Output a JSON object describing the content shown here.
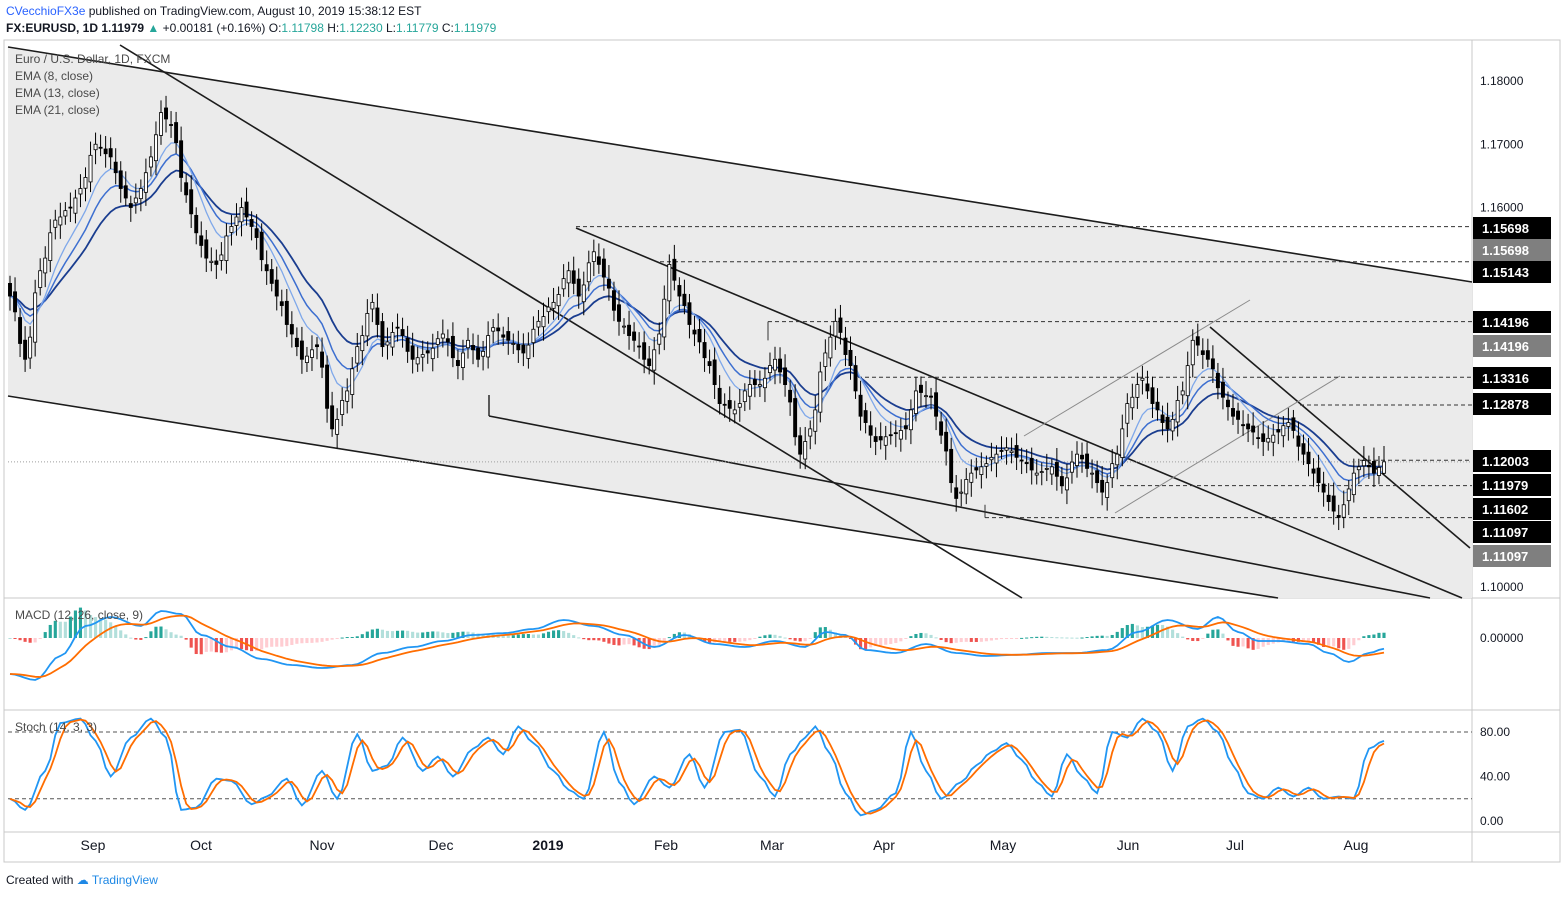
{
  "header": {
    "user": "CVecchioFX3e",
    "published": "published on TradingView.com, August 10, 2019 15:38:12 EST",
    "symbol": "FX:EURUSD, 1D",
    "last": "1.11979",
    "arrow": "▲",
    "change": "+0.00181 (+0.16%)",
    "ohlc": [
      {
        "label": "O:",
        "value": "1.11798"
      },
      {
        "label": "H:",
        "value": "1.12230"
      },
      {
        "label": "L:",
        "value": "1.11779"
      },
      {
        "label": "C:",
        "value": "1.11979"
      }
    ]
  },
  "legend": {
    "title": "Euro / U.S. Dollar, 1D, FXCM",
    "ema8": "EMA (8, close)",
    "ema13": "EMA (13, close)",
    "ema21": "EMA (21, close)",
    "macd": "MACD (12, 26, close, 9)",
    "stoch": "Stoch (14, 3, 3)"
  },
  "footer": {
    "created": "Created with",
    "brand": "TradingView"
  },
  "colors": {
    "bull": "#ffffff",
    "bear": "#000000",
    "channel": "#ebebeb",
    "ema8": "#7fa8ea",
    "ema13": "#3d6fd0",
    "ema21": "#1a3d8f",
    "macd": "#2196f3",
    "signal": "#ff6d00",
    "hist_pos": "#26a69a",
    "hist_pos_light": "#b2dfdb",
    "hist_neg": "#ef5350",
    "hist_neg_light": "#ffcdd2"
  },
  "chart_data": {
    "type": "candlestick",
    "instrument": "EUR/USD",
    "timeframe": "1D",
    "x_labels": [
      "Sep",
      "Oct",
      "Nov",
      "Dec",
      "2019",
      "Feb",
      "Mar",
      "Apr",
      "May",
      "Jun",
      "Jul",
      "Aug"
    ],
    "y_ticks": [
      "1.18000",
      "1.17000",
      "1.16000",
      "1.10000"
    ],
    "ylim": [
      1.0975,
      1.1855
    ],
    "price_labels": [
      {
        "value": "1.15698",
        "price": 1.15698,
        "style": "black"
      },
      {
        "value": "1.15698",
        "price": 1.15698,
        "style": "gray"
      },
      {
        "value": "1.15143",
        "price": 1.15143,
        "style": "black"
      },
      {
        "value": "1.14196",
        "price": 1.14196,
        "style": "black"
      },
      {
        "value": "1.14196",
        "price": 1.14196,
        "style": "gray"
      },
      {
        "value": "1.13316",
        "price": 1.13316,
        "style": "black"
      },
      {
        "value": "1.12878",
        "price": 1.12878,
        "style": "black"
      },
      {
        "value": "1.12003",
        "price": 1.12003,
        "style": "black"
      },
      {
        "value": "1.11979",
        "price": 1.11979,
        "style": "black"
      },
      {
        "value": "1.11602",
        "price": 1.11602,
        "style": "black"
      },
      {
        "value": "1.11097",
        "price": 1.11097,
        "style": "black"
      },
      {
        "value": "1.11097",
        "price": 1.11097,
        "style": "gray"
      }
    ],
    "close_anchors": [
      [
        0,
        1.146
      ],
      [
        3,
        1.136
      ],
      [
        6,
        1.15
      ],
      [
        9,
        1.158
      ],
      [
        12,
        1.16
      ],
      [
        14,
        1.163
      ],
      [
        17,
        1.17
      ],
      [
        20,
        1.168
      ],
      [
        22,
        1.163
      ],
      [
        24,
        1.16
      ],
      [
        26,
        1.163
      ],
      [
        28,
        1.168
      ],
      [
        30,
        1.175
      ],
      [
        32,
        1.173
      ],
      [
        35,
        1.162
      ],
      [
        37,
        1.156
      ],
      [
        39,
        1.152
      ],
      [
        41,
        1.151
      ],
      [
        44,
        1.157
      ],
      [
        46,
        1.16
      ],
      [
        48,
        1.157
      ],
      [
        51,
        1.15
      ],
      [
        53,
        1.146
      ],
      [
        56,
        1.14
      ],
      [
        58,
        1.136
      ],
      [
        61,
        1.138
      ],
      [
        64,
        1.125
      ],
      [
        67,
        1.131
      ],
      [
        69,
        1.138
      ],
      [
        72,
        1.145
      ],
      [
        74,
        1.138
      ],
      [
        77,
        1.141
      ],
      [
        80,
        1.136
      ],
      [
        83,
        1.137
      ],
      [
        86,
        1.14
      ],
      [
        89,
        1.135
      ],
      [
        91,
        1.139
      ],
      [
        93,
        1.136
      ],
      [
        96,
        1.141
      ],
      [
        99,
        1.139
      ],
      [
        102,
        1.137
      ],
      [
        105,
        1.142
      ],
      [
        108,
        1.145
      ],
      [
        111,
        1.15
      ],
      [
        113,
        1.146
      ],
      [
        116,
        1.153
      ],
      [
        118,
        1.149
      ],
      [
        121,
        1.142
      ],
      [
        124,
        1.139
      ],
      [
        127,
        1.135
      ],
      [
        129,
        1.14
      ],
      [
        131,
        1.151
      ],
      [
        133,
        1.146
      ],
      [
        136,
        1.14
      ],
      [
        139,
        1.135
      ],
      [
        141,
        1.129
      ],
      [
        144,
        1.128
      ],
      [
        147,
        1.132
      ],
      [
        149,
        1.132
      ],
      [
        152,
        1.136
      ],
      [
        154,
        1.132
      ],
      [
        157,
        1.121
      ],
      [
        159,
        1.125
      ],
      [
        162,
        1.137
      ],
      [
        164,
        1.142
      ],
      [
        167,
        1.135
      ],
      [
        169,
        1.127
      ],
      [
        172,
        1.123
      ],
      [
        175,
        1.124
      ],
      [
        178,
        1.125
      ],
      [
        180,
        1.131
      ],
      [
        183,
        1.13
      ],
      [
        185,
        1.124
      ],
      [
        188,
        1.114
      ],
      [
        191,
        1.118
      ],
      [
        193,
        1.119
      ],
      [
        196,
        1.121
      ],
      [
        198,
        1.122
      ],
      [
        201,
        1.12
      ],
      [
        204,
        1.118
      ],
      [
        207,
        1.119
      ],
      [
        209,
        1.116
      ],
      [
        212,
        1.121
      ],
      [
        215,
        1.118
      ],
      [
        217,
        1.115
      ],
      [
        220,
        1.121
      ],
      [
        222,
        1.129
      ],
      [
        225,
        1.133
      ],
      [
        227,
        1.129
      ],
      [
        230,
        1.125
      ],
      [
        233,
        1.131
      ],
      [
        235,
        1.139
      ],
      [
        238,
        1.136
      ],
      [
        241,
        1.13
      ],
      [
        243,
        1.127
      ],
      [
        246,
        1.125
      ],
      [
        249,
        1.123
      ],
      [
        251,
        1.124
      ],
      [
        254,
        1.126
      ],
      [
        257,
        1.121
      ],
      [
        259,
        1.118
      ],
      [
        261,
        1.115
      ],
      [
        263,
        1.112
      ],
      [
        264,
        1.111
      ],
      [
        265,
        1.113
      ],
      [
        267,
        1.118
      ],
      [
        269,
        1.12
      ],
      [
        271,
        1.118
      ],
      [
        273,
        1.1198
      ]
    ],
    "macd_anchors": [
      [
        0,
        -0.006
      ],
      [
        5,
        -0.007
      ],
      [
        10,
        -0.003
      ],
      [
        15,
        0.002
      ],
      [
        20,
        0.0035
      ],
      [
        26,
        0.002
      ],
      [
        30,
        0.0045
      ],
      [
        34,
        0.004
      ],
      [
        38,
        0.0005
      ],
      [
        44,
        -0.0015
      ],
      [
        50,
        -0.0035
      ],
      [
        56,
        -0.0045
      ],
      [
        62,
        -0.005
      ],
      [
        68,
        -0.0045
      ],
      [
        74,
        -0.0025
      ],
      [
        80,
        -0.0015
      ],
      [
        86,
        -0.0005
      ],
      [
        92,
        0.0005
      ],
      [
        98,
        0.0008
      ],
      [
        104,
        0.0015
      ],
      [
        110,
        0.003
      ],
      [
        116,
        0.002
      ],
      [
        122,
        0.0005
      ],
      [
        128,
        -0.0015
      ],
      [
        134,
        0.0005
      ],
      [
        140,
        -0.001
      ],
      [
        146,
        -0.0015
      ],
      [
        152,
        -0.0005
      ],
      [
        158,
        -0.0015
      ],
      [
        162,
        0.001
      ],
      [
        166,
        0.0005
      ],
      [
        170,
        -0.002
      ],
      [
        176,
        -0.0025
      ],
      [
        182,
        -0.001
      ],
      [
        188,
        -0.0025
      ],
      [
        194,
        -0.003
      ],
      [
        200,
        -0.0028
      ],
      [
        206,
        -0.0025
      ],
      [
        212,
        -0.0025
      ],
      [
        218,
        -0.002
      ],
      [
        224,
        0.001
      ],
      [
        230,
        0.003
      ],
      [
        236,
        0.0015
      ],
      [
        240,
        0.0035
      ],
      [
        244,
        0.001
      ],
      [
        248,
        -0.0005
      ],
      [
        252,
        -0.0005
      ],
      [
        258,
        -0.001
      ],
      [
        262,
        -0.0025
      ],
      [
        266,
        -0.004
      ],
      [
        270,
        -0.0025
      ],
      [
        273,
        -0.0018
      ]
    ],
    "stoch_anchors": [
      [
        0,
        20
      ],
      [
        3,
        10
      ],
      [
        7,
        45
      ],
      [
        10,
        88
      ],
      [
        14,
        92
      ],
      [
        17,
        72
      ],
      [
        20,
        40
      ],
      [
        24,
        75
      ],
      [
        28,
        92
      ],
      [
        31,
        75
      ],
      [
        34,
        10
      ],
      [
        37,
        12
      ],
      [
        41,
        38
      ],
      [
        44,
        36
      ],
      [
        48,
        15
      ],
      [
        51,
        22
      ],
      [
        55,
        38
      ],
      [
        58,
        14
      ],
      [
        62,
        45
      ],
      [
        65,
        20
      ],
      [
        69,
        78
      ],
      [
        72,
        45
      ],
      [
        75,
        50
      ],
      [
        78,
        75
      ],
      [
        82,
        45
      ],
      [
        85,
        58
      ],
      [
        88,
        40
      ],
      [
        92,
        65
      ],
      [
        95,
        75
      ],
      [
        98,
        60
      ],
      [
        101,
        85
      ],
      [
        104,
        70
      ],
      [
        108,
        45
      ],
      [
        111,
        28
      ],
      [
        114,
        20
      ],
      [
        118,
        80
      ],
      [
        121,
        35
      ],
      [
        124,
        15
      ],
      [
        128,
        40
      ],
      [
        131,
        30
      ],
      [
        135,
        60
      ],
      [
        138,
        30
      ],
      [
        142,
        80
      ],
      [
        145,
        82
      ],
      [
        149,
        40
      ],
      [
        152,
        22
      ],
      [
        155,
        60
      ],
      [
        158,
        75
      ],
      [
        160,
        85
      ],
      [
        163,
        60
      ],
      [
        166,
        25
      ],
      [
        169,
        5
      ],
      [
        172,
        10
      ],
      [
        176,
        25
      ],
      [
        179,
        80
      ],
      [
        182,
        45
      ],
      [
        185,
        20
      ],
      [
        189,
        35
      ],
      [
        192,
        50
      ],
      [
        195,
        62
      ],
      [
        198,
        70
      ],
      [
        201,
        55
      ],
      [
        204,
        35
      ],
      [
        207,
        22
      ],
      [
        210,
        60
      ],
      [
        213,
        40
      ],
      [
        216,
        25
      ],
      [
        219,
        80
      ],
      [
        222,
        75
      ],
      [
        225,
        92
      ],
      [
        228,
        80
      ],
      [
        231,
        45
      ],
      [
        234,
        85
      ],
      [
        237,
        92
      ],
      [
        240,
        80
      ],
      [
        243,
        50
      ],
      [
        246,
        25
      ],
      [
        249,
        20
      ],
      [
        252,
        30
      ],
      [
        255,
        22
      ],
      [
        258,
        30
      ],
      [
        261,
        20
      ],
      [
        264,
        22
      ],
      [
        267,
        20
      ],
      [
        270,
        65
      ],
      [
        273,
        72
      ]
    ]
  }
}
